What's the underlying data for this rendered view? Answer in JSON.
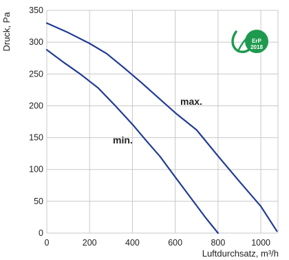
{
  "chart_data": {
    "type": "line",
    "xlabel": "Luftdurchsatz, m³/h",
    "ylabel": "Druck, Pa",
    "xlim": [
      0,
      1080
    ],
    "ylim": [
      0,
      350
    ],
    "x_ticks": [
      0,
      200,
      400,
      600,
      800,
      1000
    ],
    "y_ticks": [
      0,
      50,
      100,
      150,
      200,
      250,
      300,
      350
    ],
    "grid": true,
    "series_color": "#1f3b94",
    "series": [
      {
        "name": "max.",
        "x": [
          0,
          100,
          200,
          280,
          360,
          440,
          520,
          600,
          700,
          800,
          900,
          1000,
          1075
        ],
        "y": [
          330,
          315,
          298,
          282,
          260,
          237,
          213,
          189,
          162,
          121,
          81,
          42,
          3
        ]
      },
      {
        "name": "min.",
        "x": [
          0,
          80,
          160,
          240,
          320,
          400,
          460,
          530,
          600,
          680,
          740,
          800
        ],
        "y": [
          288,
          268,
          249,
          228,
          200,
          171,
          147,
          120,
          88,
          52,
          25,
          0
        ]
      }
    ]
  },
  "badge": {
    "text_line1": "ErP",
    "text_line2": "2018",
    "color": "#1e9a4e",
    "icon": "leaf-icon"
  }
}
